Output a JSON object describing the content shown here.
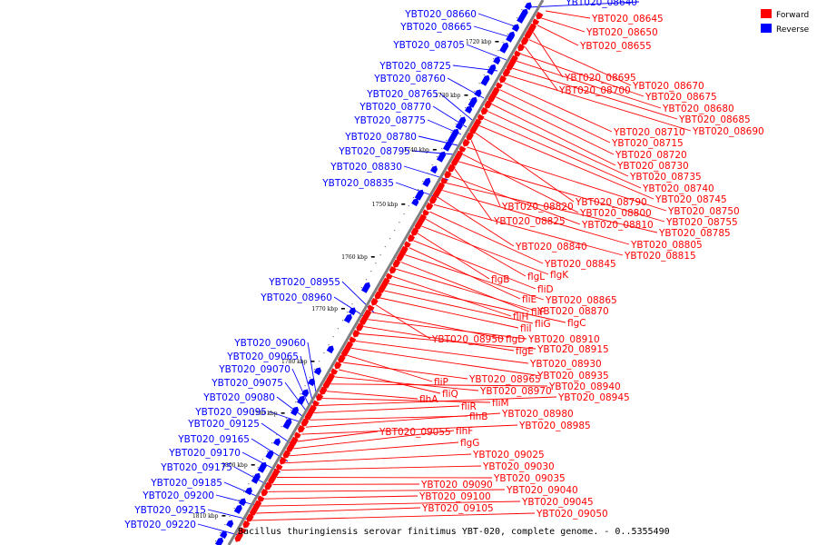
{
  "colors": {
    "forward": "#ff0000",
    "reverse": "#0000ff",
    "backbone": "#808080"
  },
  "legend": [
    {
      "label": "Forward",
      "color": "#ff0000"
    },
    {
      "label": "Reverse",
      "color": "#0000ff"
    }
  ],
  "caption": "Bacillus thuringiensis serovar finitimus YBT-020, complete genome. - 0..5355490",
  "ticks": [
    "1720 kbp",
    "1730 kbp",
    "1740 kbp",
    "1750 kbp",
    "1760 kbp",
    "1770 kbp",
    "1780 kbp",
    "1790 kbp",
    "1800 kbp",
    "1810 kbp"
  ],
  "reverse_genes": [
    "YBT020_08640",
    "YBT020_08660",
    "YBT020_08665",
    "YBT020_08705",
    "YBT020_08725",
    "YBT020_08760",
    "YBT020_08765",
    "YBT020_08770",
    "YBT020_08775",
    "YBT020_08780",
    "YBT020_08795",
    "YBT020_08830",
    "YBT020_08835",
    "YBT020_08955",
    "YBT020_08960",
    "YBT020_09060",
    "YBT020_09065",
    "YBT020_09070",
    "YBT020_09075",
    "YBT020_09080",
    "YBT020_09095",
    "YBT020_09125",
    "YBT020_09165",
    "YBT020_09170",
    "YBT020_09175",
    "YBT020_09185",
    "YBT020_09200",
    "YBT020_09215",
    "YBT020_09220"
  ],
  "forward_genes": [
    "YBT020_08645",
    "YBT020_08650",
    "YBT020_08655",
    "YBT020_08695",
    "YBT020_08670",
    "YBT020_08700",
    "YBT020_08675",
    "YBT020_08680",
    "YBT020_08685",
    "YBT020_08690",
    "YBT020_08710",
    "YBT020_08715",
    "YBT020_08720",
    "YBT020_08730",
    "YBT020_08735",
    "YBT020_08740",
    "YBT020_08745",
    "YBT020_08790",
    "YBT020_08820",
    "YBT020_08750",
    "YBT020_08800",
    "YBT020_08755",
    "YBT020_08825",
    "YBT020_08810",
    "YBT020_08785",
    "YBT020_08805",
    "YBT020_08840",
    "YBT020_08815",
    "YBT020_08845",
    "flgL",
    "flgK",
    "flgB",
    "fliD",
    "fliE",
    "YBT020_08865",
    "fliF",
    "YBT020_08870",
    "fliH",
    "flgC",
    "fliG",
    "fliI",
    "YBT020_08950",
    "flgD",
    "YBT020_08910",
    "flgE",
    "YBT020_08915",
    "YBT020_08930",
    "YBT020_08935",
    "fliP",
    "YBT020_08965",
    "fliQ",
    "YBT020_08970",
    "YBT020_08940",
    "flhA",
    "fliM",
    "YBT020_08945",
    "fliR",
    "flhB",
    "YBT020_08980",
    "YBT020_08985",
    "YBT020_09055",
    "flhF",
    "flgG",
    "YBT020_09025",
    "YBT020_09030",
    "YBT020_09035",
    "YBT020_09090",
    "YBT020_09040",
    "YBT020_09100",
    "YBT020_09045",
    "YBT020_09105",
    "YBT020_09050"
  ]
}
